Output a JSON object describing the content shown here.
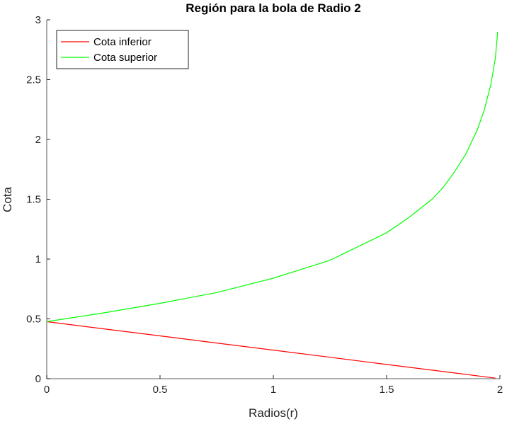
{
  "chart_data": {
    "type": "line",
    "title": "Región para la bola de Radio 2",
    "xlabel": "Radios(r)",
    "ylabel": "Cota",
    "xlim": [
      0,
      2
    ],
    "ylim": [
      0,
      3
    ],
    "xticks": [
      0,
      0.5,
      1,
      1.5,
      2
    ],
    "xtick_labels": [
      "0",
      "0.5",
      "1",
      "1.5",
      "2"
    ],
    "yticks": [
      0,
      0.5,
      1,
      1.5,
      2,
      2.5,
      3
    ],
    "ytick_labels": [
      "0",
      "0.5",
      "1",
      "1.5",
      "2",
      "2.5",
      "3"
    ],
    "grid": false,
    "box": false,
    "legend_position": "northwest",
    "series": [
      {
        "name": "Cota inferior",
        "color": "#ff0000",
        "x": [
          0,
          0.25,
          0.5,
          0.75,
          1.0,
          1.25,
          1.5,
          1.75,
          1.98
        ],
        "y": [
          0.477,
          0.417,
          0.358,
          0.298,
          0.239,
          0.179,
          0.119,
          0.06,
          0.005
        ]
      },
      {
        "name": "Cota superior",
        "color": "#00ff00",
        "x": [
          0,
          0.25,
          0.5,
          0.75,
          1.0,
          1.25,
          1.5,
          1.6,
          1.7,
          1.75,
          1.8,
          1.85,
          1.9,
          1.93,
          1.96,
          1.98,
          1.99
        ],
        "y": [
          0.477,
          0.55,
          0.63,
          0.72,
          0.84,
          0.99,
          1.22,
          1.35,
          1.5,
          1.6,
          1.73,
          1.88,
          2.08,
          2.24,
          2.46,
          2.68,
          2.9
        ]
      }
    ]
  }
}
